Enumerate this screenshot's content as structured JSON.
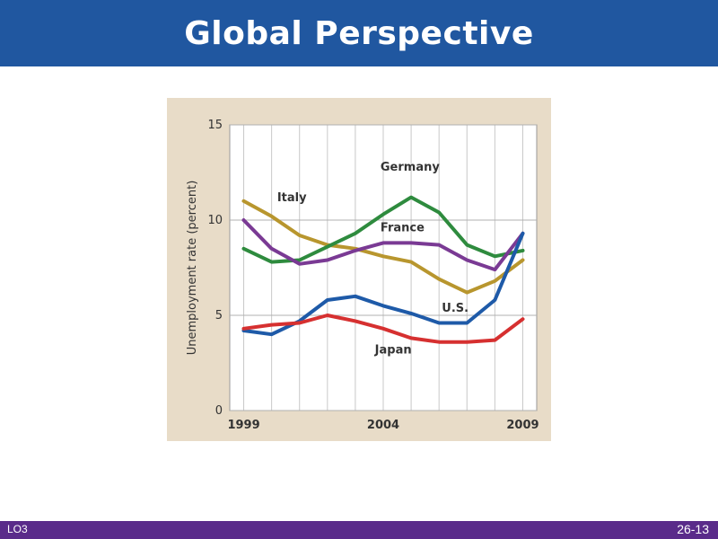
{
  "slide": {
    "title": "Global Perspective",
    "footer_left": "LO3",
    "footer_right": "26-13"
  },
  "colors": {
    "header": "#2057a0",
    "footer": "#5a2b8a",
    "panel": "#e8dcc8"
  },
  "chart_data": {
    "type": "line",
    "title": "",
    "xlabel": "",
    "ylabel": "Unemployment rate (percent)",
    "xlim": [
      1998.5,
      2009.5
    ],
    "ylim": [
      0,
      15
    ],
    "xticks": [
      "1999",
      "2004",
      "2009"
    ],
    "yticks": [
      "0",
      "5",
      "10",
      "15"
    ],
    "grid": true,
    "legend": "inline labels",
    "x": [
      1999,
      2000,
      2001,
      2002,
      2003,
      2004,
      2005,
      2006,
      2007,
      2008,
      2009
    ],
    "series": [
      {
        "name": "Italy",
        "color": "#b8962e",
        "values": [
          11.0,
          10.2,
          9.2,
          8.7,
          8.5,
          8.1,
          7.8,
          6.9,
          6.2,
          6.8,
          7.9
        ]
      },
      {
        "name": "Germany",
        "color": "#2e8b3e",
        "values": [
          8.5,
          7.8,
          7.9,
          8.6,
          9.3,
          10.3,
          11.2,
          10.4,
          8.7,
          8.1,
          8.4
        ]
      },
      {
        "name": "France",
        "color": "#7a3a94",
        "values": [
          10.0,
          8.5,
          7.7,
          7.9,
          8.4,
          8.8,
          8.8,
          8.7,
          7.9,
          7.4,
          9.3
        ]
      },
      {
        "name": "U.S.",
        "color": "#1e5aa8",
        "values": [
          4.2,
          4.0,
          4.7,
          5.8,
          6.0,
          5.5,
          5.1,
          4.6,
          4.6,
          5.8,
          9.3
        ]
      },
      {
        "name": "Japan",
        "color": "#d63030",
        "values": [
          4.3,
          4.5,
          4.6,
          5.0,
          4.7,
          4.3,
          3.8,
          3.6,
          3.6,
          3.7,
          4.8
        ]
      }
    ]
  }
}
